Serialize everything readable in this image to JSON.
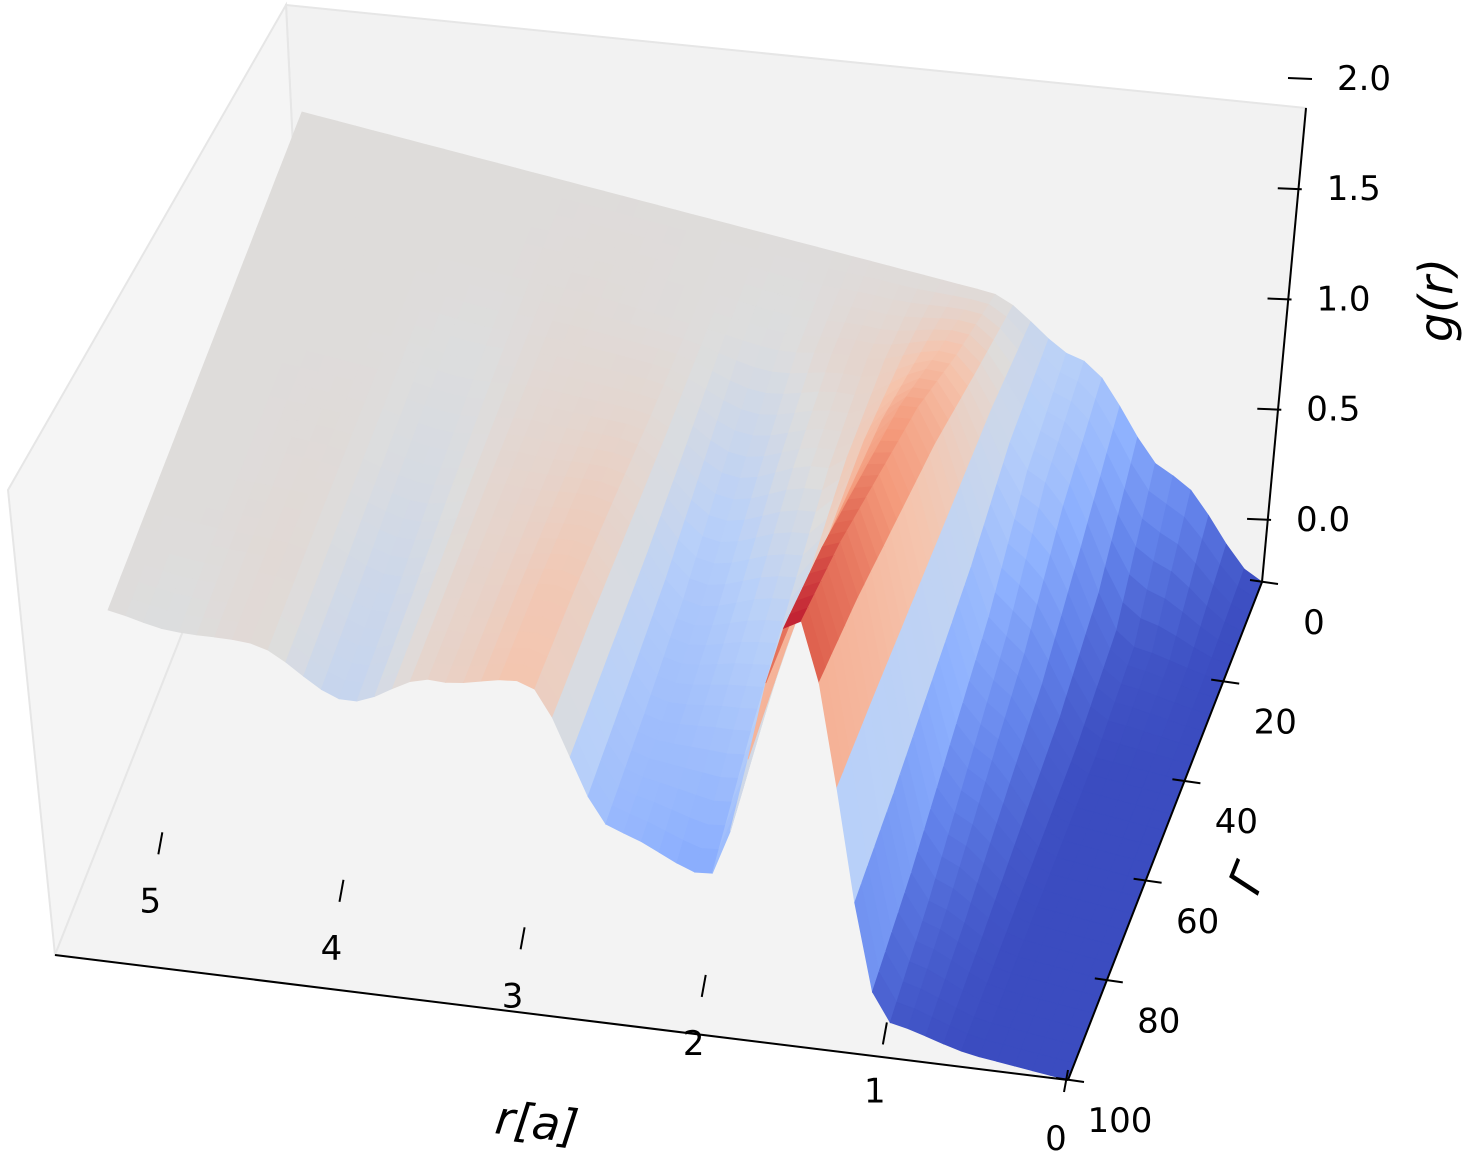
{
  "chart_data": {
    "type": "surface3d",
    "title": "",
    "x_axis": {
      "label": "r[a]",
      "ticks": [
        "0",
        "1",
        "2",
        "3",
        "4",
        "5"
      ],
      "range": [
        0,
        5.3
      ]
    },
    "y_axis": {
      "label": "Γ",
      "ticks": [
        "0",
        "20",
        "40",
        "60",
        "80",
        "100"
      ],
      "range": [
        0,
        100
      ]
    },
    "z_axis": {
      "label": "g(r)",
      "ticks": [
        "0.0",
        "0.5",
        "1.0",
        "1.5",
        "2.0"
      ],
      "range": [
        0,
        2
      ]
    },
    "colormap": "coolwarm",
    "grid": false,
    "gamma_samples": [
      0,
      20,
      40,
      60,
      80,
      100
    ],
    "series": [
      {
        "gamma": 0,
        "r": [
          0.0,
          0.5,
          1.0,
          1.5,
          2.0,
          2.5,
          3.0,
          3.5,
          4.0,
          4.5,
          5.0,
          5.3
        ],
        "g": [
          0.0,
          0.38,
          0.8,
          1.0,
          1.0,
          1.0,
          1.0,
          1.0,
          1.0,
          1.0,
          1.0,
          1.0
        ]
      },
      {
        "gamma": 20,
        "r": [
          0.0,
          0.5,
          1.0,
          1.5,
          2.0,
          2.5,
          3.0,
          3.5,
          4.0,
          4.5,
          5.0,
          5.3
        ],
        "g": [
          0.0,
          0.05,
          0.7,
          1.18,
          1.05,
          0.98,
          1.0,
          1.01,
          1.0,
          1.0,
          1.0,
          1.0
        ]
      },
      {
        "gamma": 40,
        "r": [
          0.0,
          0.5,
          1.0,
          1.5,
          2.0,
          2.5,
          3.0,
          3.5,
          4.0,
          4.5,
          5.0,
          5.3
        ],
        "g": [
          0.0,
          0.0,
          0.45,
          1.4,
          1.0,
          0.85,
          1.04,
          1.03,
          0.98,
          1.0,
          1.0,
          1.0
        ]
      },
      {
        "gamma": 60,
        "r": [
          0.0,
          0.5,
          1.0,
          1.5,
          2.0,
          2.5,
          3.0,
          3.5,
          4.0,
          4.5,
          5.0,
          5.3
        ],
        "g": [
          0.0,
          0.0,
          0.3,
          1.55,
          0.85,
          0.72,
          1.1,
          1.05,
          0.95,
          1.01,
          1.0,
          1.0
        ]
      },
      {
        "gamma": 80,
        "r": [
          0.0,
          0.5,
          1.0,
          1.5,
          2.0,
          2.5,
          3.0,
          3.5,
          4.0,
          4.5,
          5.0,
          5.3
        ],
        "g": [
          0.0,
          0.0,
          0.15,
          1.7,
          0.7,
          0.65,
          1.15,
          1.06,
          0.9,
          1.02,
          1.0,
          1.0
        ]
      },
      {
        "gamma": 100,
        "r": [
          0.0,
          0.5,
          1.0,
          1.5,
          2.0,
          2.5,
          3.0,
          3.5,
          4.0,
          4.5,
          5.0,
          5.3
        ],
        "g": [
          0.0,
          0.0,
          0.05,
          1.8,
          0.5,
          0.6,
          1.17,
          1.07,
          0.87,
          1.02,
          0.98,
          1.0
        ]
      }
    ]
  }
}
